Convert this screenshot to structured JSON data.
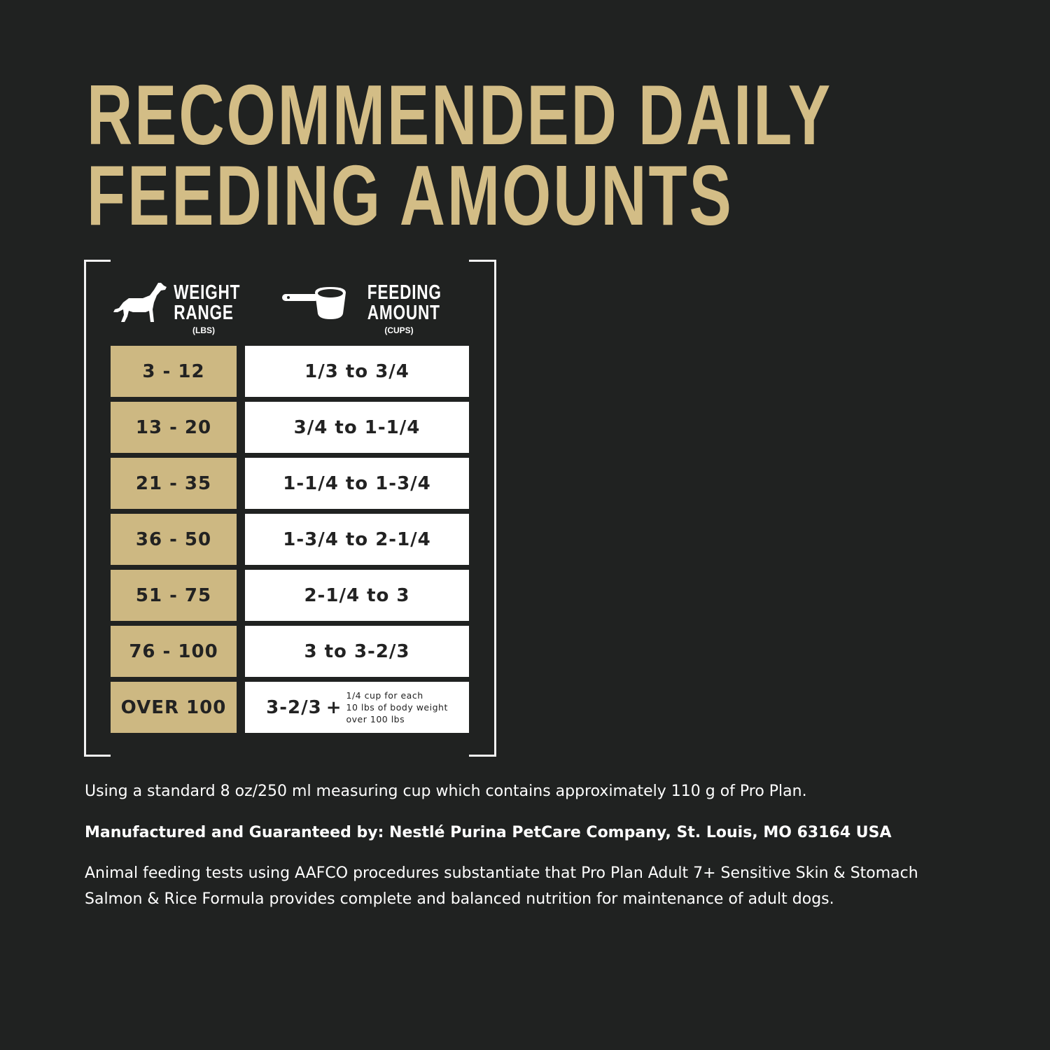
{
  "title": {
    "line1": "RECOMMENDED DAILY",
    "line2": "FEEDING AMOUNTS"
  },
  "colors": {
    "background": "#202221",
    "gold": "#cdb882",
    "title_gold": "#d3bd86",
    "white": "#ffffff"
  },
  "table": {
    "weight_header": {
      "line1": "WEIGHT",
      "line2": "RANGE",
      "unit": "(LBS)",
      "icon": "dog-icon"
    },
    "amount_header": {
      "line1": "FEEDING",
      "line2": "AMOUNT",
      "unit": "(CUPS)",
      "icon": "measuring-cup-icon"
    },
    "rows": [
      {
        "weight": "3 - 12",
        "amount": "1/3 to 3/4"
      },
      {
        "weight": "13 - 20",
        "amount": "3/4 to 1-1/4"
      },
      {
        "weight": "21 - 35",
        "amount": "1-1/4 to 1-3/4"
      },
      {
        "weight": "36 - 50",
        "amount": "1-3/4 to 2-1/4"
      },
      {
        "weight": "51 - 75",
        "amount": "2-1/4 to 3"
      },
      {
        "weight": "76 - 100",
        "amount": "3 to 3-2/3"
      }
    ],
    "last_row": {
      "weight": "OVER 100",
      "amount": "3-2/3",
      "plus": "+",
      "note1": "1/4 cup for each",
      "note2": "10 lbs of body weight",
      "note3": "over 100 lbs"
    }
  },
  "footer": {
    "cup_note": "Using a standard 8 oz/250 ml measuring cup which contains approximately 110 g of Pro Plan.",
    "manufacturer": "Manufactured and Guaranteed by: Nestlé Purina PetCare Company, St. Louis, MO 63164 USA",
    "aafco": "Animal feeding tests using AAFCO procedures substantiate that Pro Plan Adult 7+ Sensitive Skin & Stomach Salmon & Rice Formula provides complete and balanced nutrition for maintenance of adult dogs."
  }
}
